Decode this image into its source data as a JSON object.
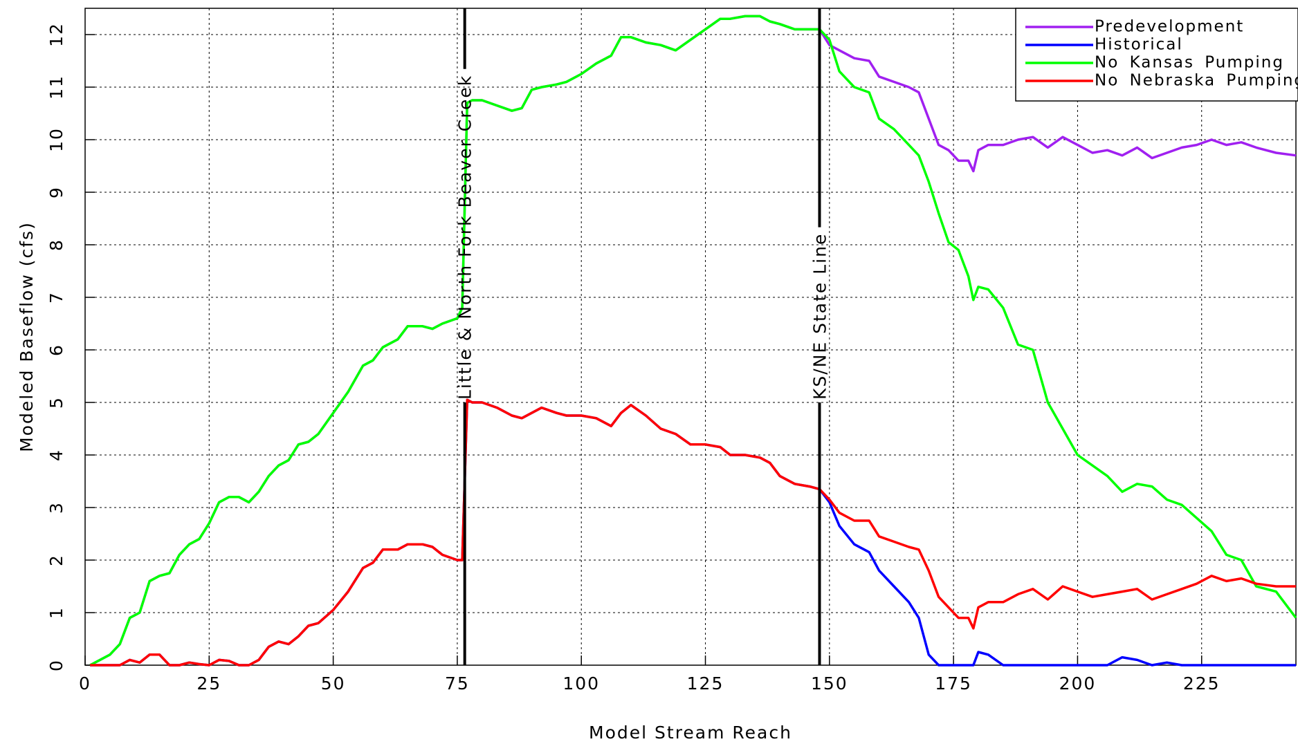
{
  "chart_data": {
    "type": "line",
    "xlabel": "Model Stream Reach",
    "ylabel": "Modeled Baseflow (cfs)",
    "xlim": [
      0,
      244
    ],
    "ylim": [
      0,
      12.5
    ],
    "xticks": [
      0,
      25,
      50,
      75,
      100,
      125,
      150,
      175,
      200,
      225
    ],
    "yticks": [
      0,
      1,
      2,
      3,
      4,
      5,
      6,
      7,
      8,
      9,
      10,
      11,
      12
    ],
    "grid": true,
    "legend": "upper right",
    "annotations": [
      {
        "text": "Little & North Fork Beaver Creek",
        "x": 76.5
      },
      {
        "text": "KS/NE State Line",
        "x": 148
      }
    ],
    "x": [
      1,
      3,
      5,
      7,
      9,
      11,
      13,
      15,
      17,
      19,
      21,
      23,
      25,
      27,
      29,
      31,
      33,
      35,
      37,
      39,
      41,
      43,
      45,
      47,
      50,
      53,
      56,
      58,
      60,
      63,
      65,
      68,
      70,
      72,
      75,
      76,
      77,
      78,
      80,
      83,
      86,
      88,
      90,
      92,
      95,
      97,
      100,
      103,
      106,
      108,
      110,
      113,
      116,
      119,
      122,
      125,
      128,
      130,
      133,
      136,
      138,
      140,
      143,
      146,
      148,
      150,
      152,
      155,
      158,
      160,
      163,
      166,
      168,
      170,
      172,
      174,
      176,
      178,
      179,
      180,
      182,
      185,
      188,
      191,
      194,
      197,
      200,
      203,
      206,
      209,
      212,
      215,
      218,
      221,
      224,
      227,
      230,
      233,
      236,
      240,
      244
    ],
    "series": [
      {
        "name": "Predevelopment",
        "color": "#a020f0",
        "values": [
          0,
          0.1,
          0.2,
          0.4,
          0.9,
          1.0,
          1.6,
          1.7,
          1.75,
          2.1,
          2.3,
          2.4,
          2.7,
          3.1,
          3.2,
          3.2,
          3.1,
          3.3,
          3.6,
          3.8,
          3.9,
          4.2,
          4.25,
          4.4,
          4.8,
          5.2,
          5.7,
          5.8,
          6.05,
          6.2,
          6.45,
          6.45,
          6.4,
          6.5,
          6.6,
          6.8,
          10.7,
          10.75,
          10.75,
          10.65,
          10.55,
          10.6,
          10.95,
          11.0,
          11.05,
          11.1,
          11.25,
          11.45,
          11.6,
          11.95,
          11.95,
          11.85,
          11.8,
          11.7,
          11.9,
          12.1,
          12.3,
          12.3,
          12.35,
          12.35,
          12.25,
          12.2,
          12.1,
          12.1,
          12.1,
          11.8,
          11.7,
          11.55,
          11.5,
          11.2,
          11.1,
          11.0,
          10.9,
          10.4,
          9.9,
          9.8,
          9.6,
          9.6,
          9.4,
          9.8,
          9.9,
          9.9,
          10.0,
          10.05,
          9.85,
          10.05,
          9.9,
          9.75,
          9.8,
          9.7,
          9.85,
          9.65,
          9.75,
          9.85,
          9.9,
          10.0,
          9.9,
          9.95,
          9.85,
          9.75,
          9.7
        ]
      },
      {
        "name": "Historical",
        "color": "#0000ff",
        "values": [
          0,
          0,
          0,
          0,
          0.1,
          0.05,
          0.2,
          0.2,
          0,
          0,
          0.05,
          0.02,
          0,
          0.1,
          0.08,
          0,
          0,
          0.1,
          0.35,
          0.45,
          0.4,
          0.55,
          0.75,
          0.8,
          1.05,
          1.4,
          1.85,
          1.95,
          2.2,
          2.2,
          2.3,
          2.3,
          2.25,
          2.1,
          2.0,
          2.0,
          5.05,
          5.0,
          5.0,
          4.9,
          4.75,
          4.7,
          4.8,
          4.9,
          4.8,
          4.75,
          4.75,
          4.7,
          4.55,
          4.8,
          4.95,
          4.75,
          4.5,
          4.4,
          4.2,
          4.2,
          4.15,
          4.0,
          4.0,
          3.95,
          3.85,
          3.6,
          3.45,
          3.4,
          3.35,
          3.1,
          2.65,
          2.3,
          2.15,
          1.8,
          1.5,
          1.2,
          0.9,
          0.2,
          0,
          0,
          0,
          0,
          0,
          0.25,
          0.2,
          0,
          0,
          0,
          0,
          0,
          0,
          0,
          0,
          0.15,
          0.1,
          0,
          0.05,
          0,
          0,
          0,
          0,
          0,
          0,
          0,
          0
        ]
      },
      {
        "name": "No Kansas Pumping",
        "color": "#00ff00",
        "values": [
          0,
          0.1,
          0.2,
          0.4,
          0.9,
          1.0,
          1.6,
          1.7,
          1.75,
          2.1,
          2.3,
          2.4,
          2.7,
          3.1,
          3.2,
          3.2,
          3.1,
          3.3,
          3.6,
          3.8,
          3.9,
          4.2,
          4.25,
          4.4,
          4.8,
          5.2,
          5.7,
          5.8,
          6.05,
          6.2,
          6.45,
          6.45,
          6.4,
          6.5,
          6.6,
          6.8,
          10.7,
          10.75,
          10.75,
          10.65,
          10.55,
          10.6,
          10.95,
          11.0,
          11.05,
          11.1,
          11.25,
          11.45,
          11.6,
          11.95,
          11.95,
          11.85,
          11.8,
          11.7,
          11.9,
          12.1,
          12.3,
          12.3,
          12.35,
          12.35,
          12.25,
          12.2,
          12.1,
          12.1,
          12.1,
          11.9,
          11.3,
          11.0,
          10.9,
          10.4,
          10.2,
          9.9,
          9.7,
          9.2,
          8.6,
          8.05,
          7.9,
          7.4,
          6.95,
          7.2,
          7.15,
          6.8,
          6.1,
          6.0,
          5.0,
          4.5,
          4.0,
          3.8,
          3.6,
          3.3,
          3.45,
          3.4,
          3.15,
          3.05,
          2.8,
          2.55,
          2.1,
          2.0,
          1.5,
          1.4,
          0.9
        ]
      },
      {
        "name": "No Nebraska Pumping",
        "color": "#ff0000",
        "values": [
          0,
          0,
          0,
          0,
          0.1,
          0.05,
          0.2,
          0.2,
          0,
          0,
          0.05,
          0.02,
          0,
          0.1,
          0.08,
          0,
          0,
          0.1,
          0.35,
          0.45,
          0.4,
          0.55,
          0.75,
          0.8,
          1.05,
          1.4,
          1.85,
          1.95,
          2.2,
          2.2,
          2.3,
          2.3,
          2.25,
          2.1,
          2.0,
          2.0,
          5.05,
          5.0,
          5.0,
          4.9,
          4.75,
          4.7,
          4.8,
          4.9,
          4.8,
          4.75,
          4.75,
          4.7,
          4.55,
          4.8,
          4.95,
          4.75,
          4.5,
          4.4,
          4.2,
          4.2,
          4.15,
          4.0,
          4.0,
          3.95,
          3.85,
          3.6,
          3.45,
          3.4,
          3.35,
          3.15,
          2.9,
          2.75,
          2.75,
          2.45,
          2.35,
          2.25,
          2.2,
          1.8,
          1.3,
          1.1,
          0.9,
          0.9,
          0.7,
          1.1,
          1.2,
          1.2,
          1.35,
          1.45,
          1.25,
          1.5,
          1.4,
          1.3,
          1.35,
          1.4,
          1.45,
          1.25,
          1.35,
          1.45,
          1.55,
          1.7,
          1.6,
          1.65,
          1.55,
          1.5,
          1.5
        ]
      }
    ]
  }
}
